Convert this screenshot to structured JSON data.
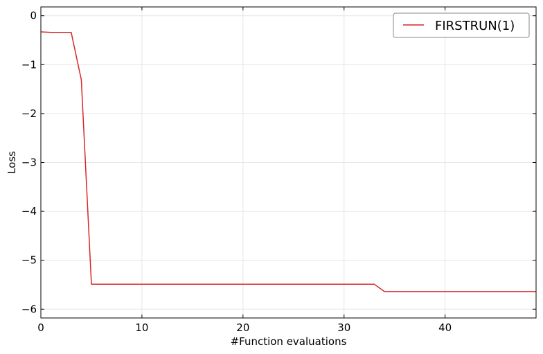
{
  "chart_data": {
    "type": "line",
    "title": "",
    "xlabel": "#Function evaluations",
    "ylabel": "Loss",
    "xlim": [
      0,
      49
    ],
    "ylim": [
      -6.18,
      0.18
    ],
    "xticks": [
      0,
      10,
      20,
      30,
      40
    ],
    "yticks": [
      0,
      -1,
      -2,
      -3,
      -4,
      -5,
      -6
    ],
    "xtick_labels": [
      "0",
      "10",
      "20",
      "30",
      "40"
    ],
    "ytick_labels": [
      "0",
      "−1",
      "−2",
      "−3",
      "−4",
      "−5",
      "−6"
    ],
    "grid": true,
    "legend_position": "top-right",
    "series": [
      {
        "name": "FIRSTRUN(1)",
        "color": "#d62728",
        "x": [
          0,
          1,
          2,
          3,
          4,
          5,
          33,
          34,
          49
        ],
        "y": [
          -0.33,
          -0.34,
          -0.34,
          -0.34,
          -1.31,
          -5.49,
          -5.49,
          -5.64,
          -5.64
        ]
      }
    ]
  }
}
